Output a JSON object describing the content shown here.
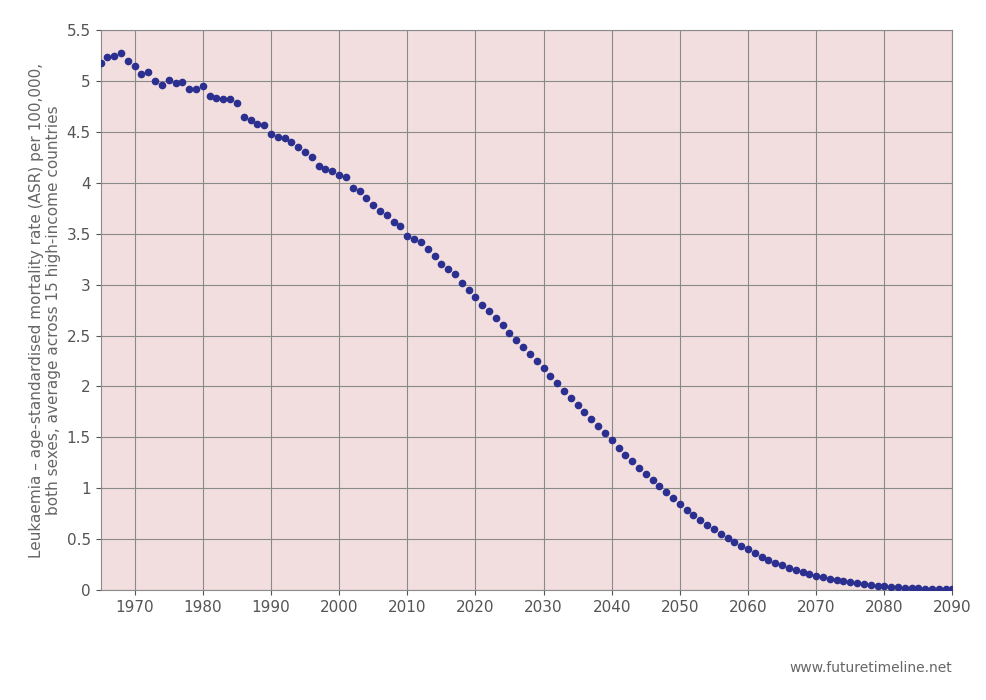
{
  "chart_data": {
    "type": "scatter",
    "y_label": "Leukaemia – age-standardised mortality rate (ASR) per 100,000,\nboth sexes, average across 15 high-income countries",
    "source": "www.futuretimeline.net",
    "x": [
      1965,
      1966,
      1967,
      1968,
      1969,
      1970,
      1971,
      1972,
      1973,
      1974,
      1975,
      1976,
      1977,
      1978,
      1979,
      1980,
      1981,
      1982,
      1983,
      1984,
      1985,
      1986,
      1987,
      1988,
      1989,
      1990,
      1991,
      1992,
      1993,
      1994,
      1995,
      1996,
      1997,
      1998,
      1999,
      2000,
      2001,
      2002,
      2003,
      2004,
      2005,
      2006,
      2007,
      2008,
      2009,
      2010,
      2011,
      2012,
      2013,
      2014,
      2015,
      2016,
      2017,
      2018,
      2019,
      2020,
      2021,
      2022,
      2023,
      2024,
      2025,
      2026,
      2027,
      2028,
      2029,
      2030,
      2031,
      2032,
      2033,
      2034,
      2035,
      2036,
      2037,
      2038,
      2039,
      2040,
      2041,
      2042,
      2043,
      2044,
      2045,
      2046,
      2047,
      2048,
      2049,
      2050,
      2051,
      2052,
      2053,
      2054,
      2055,
      2056,
      2057,
      2058,
      2059,
      2060,
      2061,
      2062,
      2063,
      2064,
      2065,
      2066,
      2067,
      2068,
      2069,
      2070,
      2071,
      2072,
      2073,
      2074,
      2075,
      2076,
      2077,
      2078,
      2079,
      2080,
      2081,
      2082,
      2083,
      2084,
      2085,
      2086,
      2087,
      2088,
      2089,
      2090
    ],
    "values": [
      5.18,
      5.24,
      5.25,
      5.28,
      5.2,
      5.15,
      5.07,
      5.09,
      5.0,
      4.96,
      5.01,
      4.98,
      4.99,
      4.92,
      4.92,
      4.95,
      4.85,
      4.83,
      4.82,
      4.82,
      4.78,
      4.65,
      4.62,
      4.58,
      4.57,
      4.48,
      4.45,
      4.44,
      4.4,
      4.35,
      4.3,
      4.25,
      4.17,
      4.14,
      4.12,
      4.08,
      4.06,
      3.95,
      3.92,
      3.85,
      3.78,
      3.72,
      3.68,
      3.62,
      3.58,
      3.48,
      3.45,
      3.42,
      3.35,
      3.28,
      3.2,
      3.15,
      3.1,
      3.02,
      2.95,
      2.88,
      2.8,
      2.74,
      2.67,
      2.6,
      2.53,
      2.46,
      2.39,
      2.32,
      2.25,
      2.18,
      2.1,
      2.03,
      1.96,
      1.89,
      1.82,
      1.75,
      1.68,
      1.61,
      1.54,
      1.47,
      1.4,
      1.33,
      1.27,
      1.2,
      1.14,
      1.08,
      1.02,
      0.96,
      0.9,
      0.85,
      0.79,
      0.74,
      0.69,
      0.64,
      0.6,
      0.55,
      0.51,
      0.47,
      0.43,
      0.4,
      0.36,
      0.33,
      0.3,
      0.27,
      0.25,
      0.22,
      0.2,
      0.18,
      0.16,
      0.14,
      0.13,
      0.11,
      0.1,
      0.09,
      0.08,
      0.07,
      0.06,
      0.05,
      0.045,
      0.04,
      0.035,
      0.03,
      0.025,
      0.02,
      0.02,
      0.015,
      0.015,
      0.01,
      0.01,
      0.01
    ],
    "color": "#2b2f8f",
    "marker": "circle",
    "line_style": "none",
    "xlim": [
      1965,
      2090
    ],
    "xticks": [
      1970,
      1980,
      1990,
      2000,
      2010,
      2020,
      2030,
      2040,
      2050,
      2060,
      2070,
      2080,
      2090
    ],
    "ylim": [
      0,
      5.5
    ],
    "yticks": [
      0,
      0.5,
      1,
      1.5,
      2,
      2.5,
      3,
      3.5,
      4,
      4.5,
      5,
      5.5
    ],
    "grid": true
  }
}
